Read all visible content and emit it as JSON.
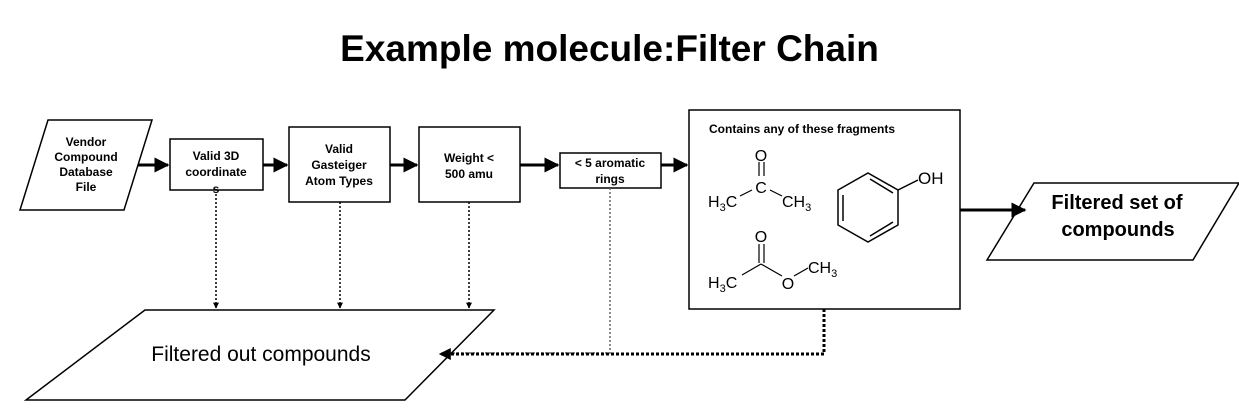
{
  "title": "Example molecule:Filter Chain",
  "source": {
    "lines": [
      "Vendor",
      "Compound",
      "Database",
      "File"
    ]
  },
  "filters": [
    {
      "id": "valid-3d",
      "lines": [
        "Valid 3D",
        "coordinate",
        "s"
      ]
    },
    {
      "id": "gasteiger",
      "lines": [
        "Valid",
        "Gasteiger",
        "Atom Types"
      ]
    },
    {
      "id": "weight",
      "lines": [
        "Weight <",
        "500 amu"
      ]
    },
    {
      "id": "aromatic",
      "lines": [
        "< 5 aromatic",
        "rings"
      ]
    }
  ],
  "fragments": {
    "title": "Contains any of these fragments",
    "acetone": {
      "o": "O",
      "c": "C",
      "h3c": "H",
      "h3c_sub": "3",
      "h3c_c": "C",
      "ch3": "CH",
      "ch3_sub": "3"
    },
    "phenol": {
      "oh": "OH"
    },
    "acetate": {
      "o_top": "O",
      "o_mid": "O",
      "h3c": "H",
      "h3c_sub": "3",
      "h3c_c": "C",
      "ch3": "CH",
      "ch3_sub": "3"
    }
  },
  "output": {
    "lines": [
      "Filtered set of",
      "compounds"
    ]
  },
  "rejected": {
    "label": "Filtered out compounds"
  },
  "colors": {
    "stroke": "#000000",
    "fill": "#ffffff",
    "dotted": "#666666"
  }
}
